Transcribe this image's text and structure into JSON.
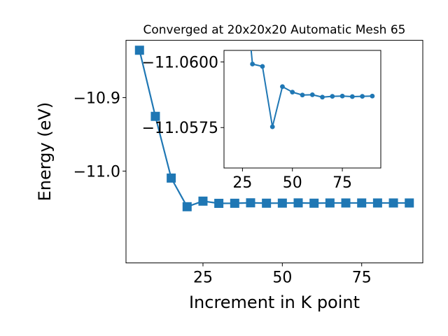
{
  "chart_data": [
    {
      "type": "line",
      "title": "Converged at 20x20x20 Automatic Mesh 65",
      "xlabel": "Increment in K point",
      "ylabel": "Energy (eV)",
      "xlim": [
        0.75,
        94.25
      ],
      "ylim": [
        -11.125,
        -10.822
      ],
      "xticks": [
        25,
        50,
        75
      ],
      "xtick_labels": [
        "25",
        "50",
        "75"
      ],
      "yticks": [
        -11.0,
        -10.9
      ],
      "ytick_labels": [
        "−11.0",
        "−10.9"
      ],
      "marker": "square",
      "color": "#1f77b4",
      "series": [
        {
          "name": "",
          "x": [
            5,
            10,
            15,
            20,
            25,
            30,
            35,
            40,
            45,
            50,
            55,
            60,
            65,
            70,
            75,
            80,
            85,
            90
          ],
          "y": [
            -10.8355,
            -10.9255,
            -11.0095,
            -11.0485,
            -11.0409,
            -11.0439,
            -11.0438,
            -11.0432,
            -11.0437,
            -11.0436,
            -11.0433,
            -11.0437,
            -11.0434,
            -11.0434,
            -11.0434,
            -11.0434,
            -11.0434,
            -11.0434
          ]
        }
      ],
      "grid": false,
      "legend": "none"
    },
    {
      "type": "line",
      "title": "",
      "xlabel": "",
      "ylabel": "",
      "xlim": [
        15.75,
        94.25
      ],
      "ylim": [
        -11.05596,
        -11.06044
      ],
      "y_axis_inverted": true,
      "xticks": [
        25,
        50,
        75
      ],
      "xtick_labels": [
        "25",
        "50",
        "75"
      ],
      "yticks": [
        -11.06,
        -11.0575
      ],
      "ytick_labels": [
        "−11.0600",
        "−11.0575"
      ],
      "marker": "circle",
      "color": "#1f77b4",
      "series": [
        {
          "name": "",
          "x": [
            25,
            30,
            35,
            40,
            45,
            50,
            55,
            60,
            65,
            70,
            75,
            80,
            85,
            90
          ],
          "y": [
            -11.0639,
            -11.05992,
            -11.05983,
            -11.05753,
            -11.05906,
            -11.05885,
            -11.05874,
            -11.05875,
            -11.05866,
            -11.05869,
            -11.0587,
            -11.05868,
            -11.05869,
            -11.0587
          ]
        }
      ],
      "grid": false,
      "legend": "none"
    }
  ]
}
